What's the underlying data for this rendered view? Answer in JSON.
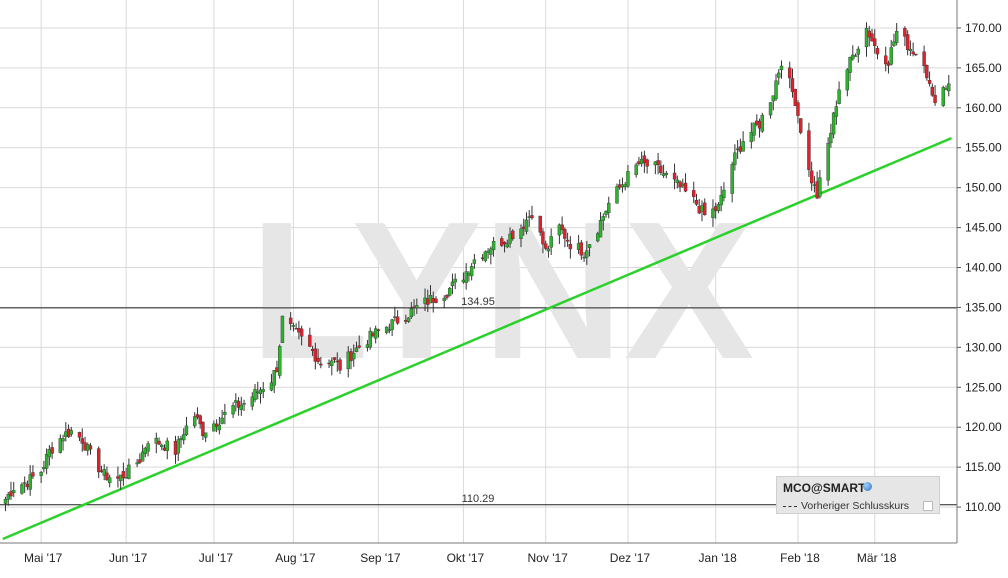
{
  "watermark": "LYNX",
  "legend": {
    "symbol": "MCO@SMART",
    "globe_icon": "globe-icon",
    "previous_close_label": "Vorheriger Schlusskurs"
  },
  "colors": {
    "up": "#2ab52a",
    "down": "#e0202a",
    "trendline": "#2bd12b",
    "hline": "#222222",
    "grid": "#d9d9d9"
  },
  "chart_data": {
    "type": "candlestick",
    "x_labels": [
      "Mai '17",
      "Jun '17",
      "Jul '17",
      "Aug '17",
      "Sep '17",
      "Okt '17",
      "Nov '17",
      "Dez '17",
      "Jan '18",
      "Feb '18",
      "Mär '18"
    ],
    "y_ticks": [
      "110.00",
      "115.00",
      "120.00",
      "125.00",
      "130.00",
      "135.00",
      "140.00",
      "145.00",
      "150.00",
      "155.00",
      "160.00",
      "165.00",
      "170.00"
    ],
    "ylim": [
      105.5,
      173.5
    ],
    "grid": true,
    "axis_position": "right",
    "horizontal_lines": [
      {
        "value": 134.95,
        "label": "134.95"
      },
      {
        "value": 110.29,
        "label": "110.29"
      }
    ],
    "trendline": {
      "from": {
        "date": "2017-04-17",
        "value": 106.0
      },
      "to": {
        "date": "2018-03-29",
        "value": 156.2
      }
    },
    "closes": [
      [
        "2017-04-18",
        111.0
      ],
      [
        "2017-04-21",
        112.5
      ],
      [
        "2017-04-26",
        113.2
      ],
      [
        "2017-05-01",
        114.5
      ],
      [
        "2017-05-04",
        117.0
      ],
      [
        "2017-05-09",
        119.0
      ],
      [
        "2017-05-12",
        119.5
      ],
      [
        "2017-05-16",
        118.5
      ],
      [
        "2017-05-19",
        116.5
      ],
      [
        "2017-05-24",
        114.0
      ],
      [
        "2017-05-29",
        113.5
      ],
      [
        "2017-06-02",
        114.5
      ],
      [
        "2017-06-06",
        116.0
      ],
      [
        "2017-06-09",
        118.5
      ],
      [
        "2017-06-14",
        118.0
      ],
      [
        "2017-06-19",
        117.0
      ],
      [
        "2017-06-22",
        119.5
      ],
      [
        "2017-06-26",
        121.5
      ],
      [
        "2017-06-29",
        119.5
      ],
      [
        "2017-07-05",
        121.0
      ],
      [
        "2017-07-10",
        122.5
      ],
      [
        "2017-07-14",
        123.0
      ],
      [
        "2017-07-19",
        124.5
      ],
      [
        "2017-07-24",
        126.0
      ],
      [
        "2017-07-26",
        127.5
      ],
      [
        "2017-07-28",
        133.5
      ],
      [
        "2017-08-01",
        132.0
      ],
      [
        "2017-08-04",
        131.0
      ],
      [
        "2017-08-08",
        129.5
      ],
      [
        "2017-08-11",
        128.0
      ],
      [
        "2017-08-15",
        128.5
      ],
      [
        "2017-08-18",
        127.5
      ],
      [
        "2017-08-23",
        129.5
      ],
      [
        "2017-08-28",
        131.0
      ],
      [
        "2017-09-01",
        132.0
      ],
      [
        "2017-09-06",
        133.0
      ],
      [
        "2017-09-11",
        134.0
      ],
      [
        "2017-09-15",
        135.0
      ],
      [
        "2017-09-20",
        136.0
      ],
      [
        "2017-09-26",
        137.0
      ],
      [
        "2017-10-02",
        139.0
      ],
      [
        "2017-10-06",
        141.0
      ],
      [
        "2017-10-11",
        142.5
      ],
      [
        "2017-10-17",
        143.5
      ],
      [
        "2017-10-23",
        145.0
      ],
      [
        "2017-10-27",
        147.0
      ],
      [
        "2017-11-01",
        142.0
      ],
      [
        "2017-11-06",
        145.0
      ],
      [
        "2017-11-10",
        143.0
      ],
      [
        "2017-11-15",
        142.0
      ],
      [
        "2017-11-20",
        145.0
      ],
      [
        "2017-11-24",
        148.0
      ],
      [
        "2017-11-30",
        151.0
      ],
      [
        "2017-12-05",
        153.0
      ],
      [
        "2017-12-11",
        152.5
      ],
      [
        "2017-12-15",
        151.5
      ],
      [
        "2017-12-20",
        150.0
      ],
      [
        "2017-12-26",
        148.0
      ],
      [
        "2017-12-29",
        146.5
      ],
      [
        "2018-01-03",
        147.5
      ],
      [
        "2018-01-08",
        153.0
      ],
      [
        "2018-01-12",
        156.0
      ],
      [
        "2018-01-18",
        158.0
      ],
      [
        "2018-01-23",
        162.0
      ],
      [
        "2018-01-26",
        166.0
      ],
      [
        "2018-01-31",
        161.0
      ],
      [
        "2018-02-05",
        152.0
      ],
      [
        "2018-02-08",
        149.0
      ],
      [
        "2018-02-13",
        157.0
      ],
      [
        "2018-02-16",
        162.5
      ],
      [
        "2018-02-21",
        166.5
      ],
      [
        "2018-02-26",
        170.0
      ],
      [
        "2018-03-02",
        167.0
      ],
      [
        "2018-03-06",
        166.0
      ],
      [
        "2018-03-09",
        169.5
      ],
      [
        "2018-03-14",
        167.5
      ],
      [
        "2018-03-19",
        166.0
      ],
      [
        "2018-03-22",
        161.0
      ],
      [
        "2018-03-26",
        162.5
      ],
      [
        "2018-03-28",
        163.0
      ]
    ]
  }
}
